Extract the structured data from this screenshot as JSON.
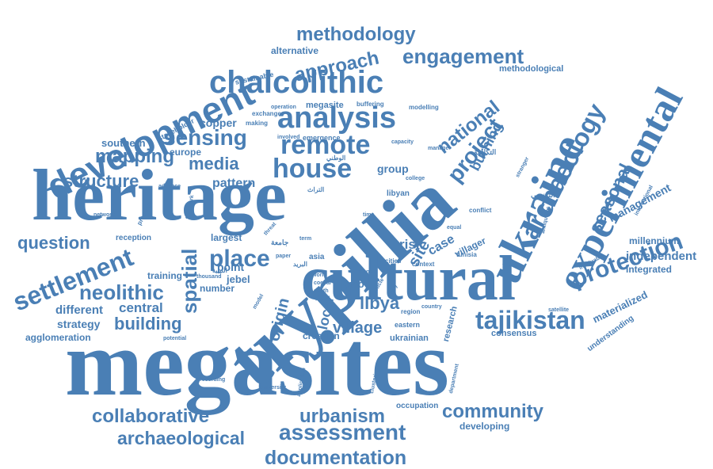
{
  "word_color": "#4a7fb5",
  "words": {
    "megasites": "megasites",
    "heritage": "heritage",
    "trypillia": "trypillia",
    "cultural": "cultural",
    "ukraine": "ukraine",
    "experimental": "experimental",
    "development": "development",
    "chalcolithic": "chalcolithic",
    "analysis": "analysis",
    "remote": "remote",
    "house": "house",
    "settlement": "settlement",
    "tajikistan": "tajikistan",
    "archaeology": "archaeology",
    "sensing": "sensing",
    "methodology": "methodology",
    "engagement": "engagement",
    "approach": "approach",
    "protection": "protection",
    "documentation": "documentation",
    "assessment": "assessment",
    "collaborative": "collaborative",
    "archaeological": "archaeological",
    "urbanism": "urbanism",
    "community": "community",
    "place": "place",
    "neolithic": "neolithic",
    "spatial": "spatial",
    "project": "project",
    "national": "national",
    "mapping": "mapping",
    "media": "media",
    "structure": "structure",
    "question": "question",
    "building": "building",
    "village": "village",
    "libya": "libya",
    "origin": "origin",
    "seasonal": "seasonal",
    "management": "management",
    "independent": "independent",
    "burning": "burning",
    "site": "site",
    "case": "case",
    "risk": "risk",
    "materialized": "materialized",
    "integrated": "integrated",
    "millennium": "millennium",
    "pattern": "pattern",
    "southern": "southern",
    "europe": "europe",
    "copper": "copper",
    "group": "group",
    "central": "central",
    "different": "different",
    "strategy": "strategy",
    "agglomeration": "agglomeration",
    "training": "training",
    "point": "point",
    "jebel": "jebel",
    "number": "number",
    "largest": "largest",
    "reception": "reception",
    "local": "local",
    "creation": "creation",
    "ukrainian": "ukrainian",
    "research": "research",
    "consensus": "consensus",
    "understanding": "understanding",
    "developing": "developing",
    "occupation": "occupation",
    "alternative": "alternative",
    "sustainable": "sustainable",
    "stakeholder": "stakeholder",
    "methodological": "methodological",
    "megasite": "megasite",
    "emergence": "emergence",
    "buffering": "buffering",
    "modelling": "modelling",
    "exchange": "exchange",
    "making": "making",
    "operation": "operation",
    "involved": "involved",
    "capacity": "capacity",
    "good": "good",
    "libyan": "libyan",
    "conflict": "conflict",
    "villager": "villager",
    "tunisia": "tunisia",
    "context": "context",
    "cities": "cities",
    "region": "region",
    "eastern": "eastern",
    "department": "department",
    "university": "university",
    "application": "application",
    "clustering": "clustering",
    "recording": "recording",
    "potential": "potential",
    "thousand": "thousand",
    "preserve": "preserve",
    "fieldwork": "fieldwork",
    "network": "network",
    "advance": "advance",
    "international": "international",
    "antiquities": "antiquities",
    "invaluable": "invaluable",
    "stranger": "stranger",
    "satellite": "satellite",
    "country": "country",
    "mena": "mena",
    "study": "study",
    "article": "article",
    "time": "time",
    "equal": "equal",
    "world": "world",
    "coeval": "coeval",
    "death": "death",
    "asia": "asia",
    "threat": "threat",
    "model": "model",
    "paper": "paper",
    "cluster_term": "term",
    "college": "college",
    "manage": "manage",
    "arabic_1": "التكاملة",
    "arabic_2": "التونسي",
    "arabic_3": "الوطني",
    "arabic_4": "جامعة",
    "arabic_5": "الليبية",
    "arabic_6": "البريد",
    "arabic_7": "المعهد",
    "arabic_8": "التراث"
  }
}
